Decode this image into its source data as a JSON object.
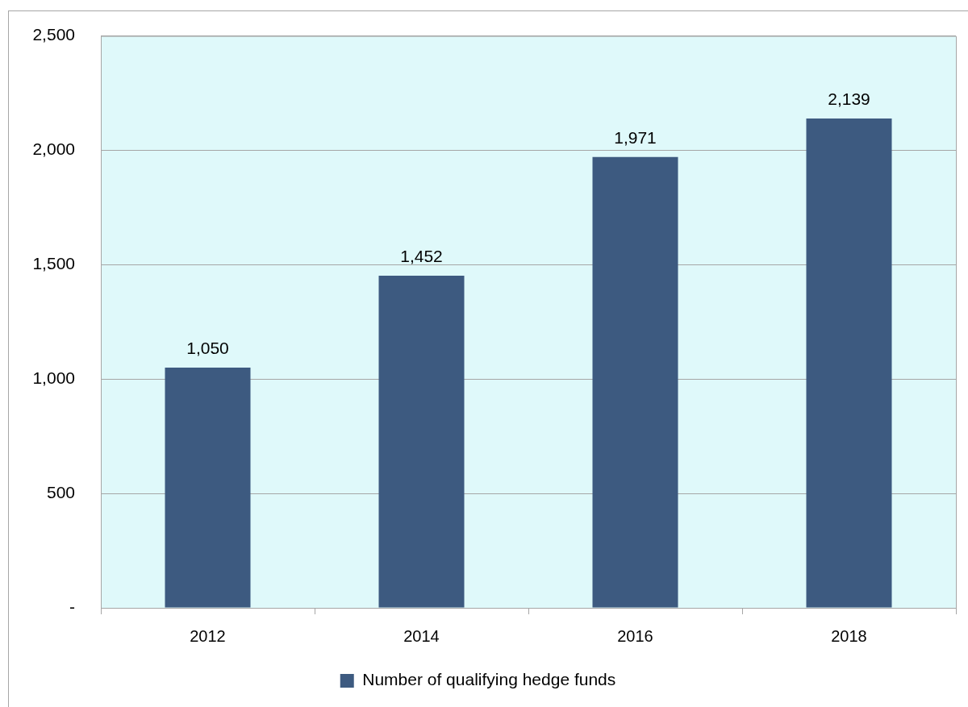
{
  "chart_data": {
    "type": "bar",
    "categories": [
      "2012",
      "2014",
      "2016",
      "2018"
    ],
    "series": [
      {
        "name": "Number of qualifying hedge funds",
        "color": "#3d5a80",
        "values": [
          1050,
          1452,
          1971,
          2139
        ],
        "value_labels": [
          "1,050",
          "1,452",
          "1,971",
          "2,139"
        ]
      }
    ],
    "ylim": [
      0,
      2500
    ],
    "yticks": [
      {
        "value": 0,
        "label": "-"
      },
      500,
      {
        "value": 1000,
        "label": "1,000"
      },
      {
        "value": 1500,
        "label": "1,500"
      },
      {
        "value": 2000,
        "label": "2,000"
      },
      {
        "value": 2500,
        "label": "2,500"
      }
    ],
    "grid": "y",
    "legend": "bottom"
  }
}
